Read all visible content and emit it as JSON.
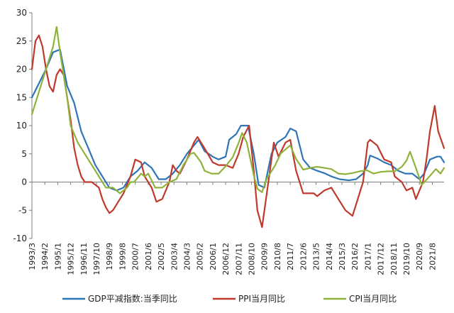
{
  "chart_data": {
    "type": "line",
    "title": "",
    "xlabel": "",
    "ylabel": "",
    "ylim": [
      -10,
      30
    ],
    "yticks": [
      -10,
      -5,
      0,
      5,
      10,
      15,
      20,
      25,
      30
    ],
    "ytick_labels": [
      "-10",
      "-5",
      "0",
      "5",
      "10",
      "15",
      "20",
      "25",
      "30"
    ],
    "grid": false,
    "legend_position": "bottom",
    "x_start": "1993/3",
    "x_end": "2022/6",
    "xtick_labels": [
      "1993/3",
      "1994/2",
      "1995/1",
      "1995/12",
      "1996/11",
      "1997/10",
      "1998/9",
      "1999/8",
      "2000/7",
      "2001/6",
      "2002/5",
      "2003/4",
      "2004/3",
      "2005/2",
      "2006/1",
      "2006/12",
      "2007/11",
      "2008/10",
      "2009/9",
      "2010/8",
      "2011/7",
      "2012/6",
      "2013/5",
      "2014/4",
      "2015/3",
      "2016/2",
      "2017/1",
      "2017/12",
      "2018/11",
      "2019/10",
      "2020/9",
      "2021/8"
    ],
    "series": [
      {
        "name": "GDP平减指数:当季同比",
        "color": "#2e75b6",
        "points": [
          [
            "1993/3",
            15
          ],
          [
            "1994/3",
            20
          ],
          [
            "1994/9",
            23
          ],
          [
            "1995/3",
            23.5
          ],
          [
            "1995/9",
            17
          ],
          [
            "1996/3",
            14
          ],
          [
            "1996/9",
            9
          ],
          [
            "1997/3",
            6
          ],
          [
            "1997/9",
            3
          ],
          [
            "1998/3",
            1
          ],
          [
            "1998/9",
            -1
          ],
          [
            "1999/3",
            -1.5
          ],
          [
            "1999/9",
            -1
          ],
          [
            "2000/3",
            1
          ],
          [
            "2000/9",
            2
          ],
          [
            "2001/3",
            3.5
          ],
          [
            "2001/9",
            2.5
          ],
          [
            "2002/3",
            0.5
          ],
          [
            "2002/9",
            0.5
          ],
          [
            "2003/3",
            1.5
          ],
          [
            "2003/9",
            3
          ],
          [
            "2004/3",
            5
          ],
          [
            "2004/9",
            6.5
          ],
          [
            "2005/1",
            7.5
          ],
          [
            "2005/6",
            5.5
          ],
          [
            "2006/1",
            4.5
          ],
          [
            "2006/6",
            4
          ],
          [
            "2006/12",
            4.5
          ],
          [
            "2007/3",
            7.5
          ],
          [
            "2007/9",
            8.5
          ],
          [
            "2008/1",
            10
          ],
          [
            "2008/7",
            10
          ],
          [
            "2008/12",
            5
          ],
          [
            "2009/4",
            -0.5
          ],
          [
            "2009/9",
            -1
          ],
          [
            "2010/3",
            5
          ],
          [
            "2010/8",
            7
          ],
          [
            "2011/3",
            8
          ],
          [
            "2011/7",
            9.5
          ],
          [
            "2011/12",
            9
          ],
          [
            "2012/6",
            4
          ],
          [
            "2012/12",
            2.5
          ],
          [
            "2013/6",
            2
          ],
          [
            "2014/1",
            1.5
          ],
          [
            "2014/6",
            1
          ],
          [
            "2015/1",
            0.5
          ],
          [
            "2015/9",
            0.3
          ],
          [
            "2016/3",
            0.5
          ],
          [
            "2016/9",
            1.5
          ],
          [
            "2017/1",
            3
          ],
          [
            "2017/3",
            4.7
          ],
          [
            "2017/9",
            4.2
          ],
          [
            "2018/3",
            3.5
          ],
          [
            "2018/9",
            3
          ],
          [
            "2019/3",
            2
          ],
          [
            "2019/9",
            1.5
          ],
          [
            "2020/3",
            1.5
          ],
          [
            "2020/9",
            0.5
          ],
          [
            "2021/1",
            1.5
          ],
          [
            "2021/6",
            4
          ],
          [
            "2021/12",
            4.5
          ],
          [
            "2022/3",
            4.5
          ],
          [
            "2022/6",
            3.5
          ]
        ]
      },
      {
        "name": "PPI当月同比",
        "color": "#c0392b",
        "points": [
          [
            "1993/3",
            20
          ],
          [
            "1993/6",
            25
          ],
          [
            "1993/9",
            26
          ],
          [
            "1993/12",
            24
          ],
          [
            "1994/3",
            20
          ],
          [
            "1994/6",
            17
          ],
          [
            "1994/9",
            16
          ],
          [
            "1994/12",
            19
          ],
          [
            "1995/3",
            20
          ],
          [
            "1995/6",
            19
          ],
          [
            "1995/9",
            15
          ],
          [
            "1995/12",
            11
          ],
          [
            "1996/3",
            6
          ],
          [
            "1996/6",
            3
          ],
          [
            "1996/9",
            1
          ],
          [
            "1996/12",
            0
          ],
          [
            "1997/6",
            0
          ],
          [
            "1997/12",
            -1
          ],
          [
            "1998/3",
            -3
          ],
          [
            "1998/6",
            -4.5
          ],
          [
            "1998/9",
            -5.5
          ],
          [
            "1998/12",
            -5
          ],
          [
            "1999/3",
            -4
          ],
          [
            "1999/9",
            -2
          ],
          [
            "2000/3",
            1
          ],
          [
            "2000/7",
            4
          ],
          [
            "2000/12",
            3.5
          ],
          [
            "2001/3",
            1
          ],
          [
            "2001/9",
            -1
          ],
          [
            "2002/1",
            -3.5
          ],
          [
            "2002/6",
            -3
          ],
          [
            "2002/12",
            0
          ],
          [
            "2003/3",
            3
          ],
          [
            "2003/6",
            2
          ],
          [
            "2003/9",
            1.5
          ],
          [
            "2004/3",
            4
          ],
          [
            "2004/9",
            7
          ],
          [
            "2004/12",
            8
          ],
          [
            "2005/6",
            6
          ],
          [
            "2006/1",
            3.5
          ],
          [
            "2006/6",
            3
          ],
          [
            "2006/12",
            3
          ],
          [
            "2007/6",
            2.5
          ],
          [
            "2007/11",
            5
          ],
          [
            "2008/3",
            8
          ],
          [
            "2008/8",
            10
          ],
          [
            "2008/12",
            2
          ],
          [
            "2009/3",
            -5
          ],
          [
            "2009/7",
            -8
          ],
          [
            "2009/11",
            -2
          ],
          [
            "2010/3",
            4
          ],
          [
            "2010/5",
            7
          ],
          [
            "2010/9",
            4.5
          ],
          [
            "2011/3",
            7
          ],
          [
            "2011/7",
            7.5
          ],
          [
            "2011/12",
            2
          ],
          [
            "2012/6",
            -2
          ],
          [
            "2012/12",
            -2
          ],
          [
            "2013/3",
            -2
          ],
          [
            "2013/6",
            -2.5
          ],
          [
            "2013/12",
            -1.5
          ],
          [
            "2014/6",
            -1
          ],
          [
            "2014/12",
            -3
          ],
          [
            "2015/6",
            -5
          ],
          [
            "2015/12",
            -6
          ],
          [
            "2016/3",
            -4
          ],
          [
            "2016/9",
            0
          ],
          [
            "2017/1",
            7
          ],
          [
            "2017/3",
            7.5
          ],
          [
            "2017/9",
            6.5
          ],
          [
            "2018/3",
            4
          ],
          [
            "2018/9",
            3.5
          ],
          [
            "2018/12",
            1
          ],
          [
            "2019/6",
            0
          ],
          [
            "2019/10",
            -1.5
          ],
          [
            "2020/3",
            -1
          ],
          [
            "2020/6",
            -3
          ],
          [
            "2020/12",
            0
          ],
          [
            "2021/3",
            4
          ],
          [
            "2021/6",
            9
          ],
          [
            "2021/10",
            13.5
          ],
          [
            "2022/1",
            9
          ],
          [
            "2022/6",
            6
          ]
        ]
      },
      {
        "name": "CPI当月同比",
        "color": "#8fb33a",
        "points": [
          [
            "1993/3",
            12
          ],
          [
            "1993/9",
            16
          ],
          [
            "1994/3",
            20
          ],
          [
            "1994/9",
            24
          ],
          [
            "1994/12",
            27.5
          ],
          [
            "1995/3",
            23
          ],
          [
            "1995/9",
            15
          ],
          [
            "1995/12",
            10
          ],
          [
            "1996/6",
            7
          ],
          [
            "1996/12",
            5
          ],
          [
            "1997/6",
            3
          ],
          [
            "1997/12",
            1
          ],
          [
            "1998/6",
            -1
          ],
          [
            "1998/12",
            -1
          ],
          [
            "1999/6",
            -2
          ],
          [
            "1999/12",
            -1
          ],
          [
            "2000/3",
            0
          ],
          [
            "2000/6",
            0
          ],
          [
            "2000/12",
            1.5
          ],
          [
            "2001/3",
            1
          ],
          [
            "2001/6",
            1.5
          ],
          [
            "2001/12",
            -1
          ],
          [
            "2002/6",
            -1
          ],
          [
            "2002/12",
            0
          ],
          [
            "2003/6",
            0.5
          ],
          [
            "2003/12",
            3
          ],
          [
            "2004/6",
            5
          ],
          [
            "2004/9",
            5.2
          ],
          [
            "2005/3",
            3.5
          ],
          [
            "2005/6",
            2
          ],
          [
            "2005/12",
            1.5
          ],
          [
            "2006/6",
            1.5
          ],
          [
            "2006/12",
            2.8
          ],
          [
            "2007/6",
            4.4
          ],
          [
            "2007/11",
            6.9
          ],
          [
            "2008/2",
            8.7
          ],
          [
            "2008/6",
            7
          ],
          [
            "2008/12",
            1.2
          ],
          [
            "2009/3",
            -1.2
          ],
          [
            "2009/7",
            -1.8
          ],
          [
            "2009/11",
            0.6
          ],
          [
            "2010/6",
            2.9
          ],
          [
            "2010/11",
            5.1
          ],
          [
            "2011/7",
            6.5
          ],
          [
            "2011/12",
            4.1
          ],
          [
            "2012/6",
            2.2
          ],
          [
            "2012/12",
            2.5
          ],
          [
            "2013/6",
            2.7
          ],
          [
            "2013/12",
            2.5
          ],
          [
            "2014/6",
            2.3
          ],
          [
            "2014/12",
            1.5
          ],
          [
            "2015/6",
            1.4
          ],
          [
            "2015/12",
            1.6
          ],
          [
            "2016/6",
            1.9
          ],
          [
            "2016/12",
            2.1
          ],
          [
            "2017/6",
            1.5
          ],
          [
            "2017/12",
            1.8
          ],
          [
            "2018/6",
            1.9
          ],
          [
            "2018/12",
            1.9
          ],
          [
            "2019/6",
            2.7
          ],
          [
            "2019/10",
            3.8
          ],
          [
            "2020/1",
            5.4
          ],
          [
            "2020/6",
            2.5
          ],
          [
            "2020/11",
            -0.5
          ],
          [
            "2021/3",
            0.4
          ],
          [
            "2021/6",
            1.1
          ],
          [
            "2021/11",
            2.3
          ],
          [
            "2022/3",
            1.5
          ],
          [
            "2022/6",
            2.5
          ]
        ]
      }
    ]
  }
}
